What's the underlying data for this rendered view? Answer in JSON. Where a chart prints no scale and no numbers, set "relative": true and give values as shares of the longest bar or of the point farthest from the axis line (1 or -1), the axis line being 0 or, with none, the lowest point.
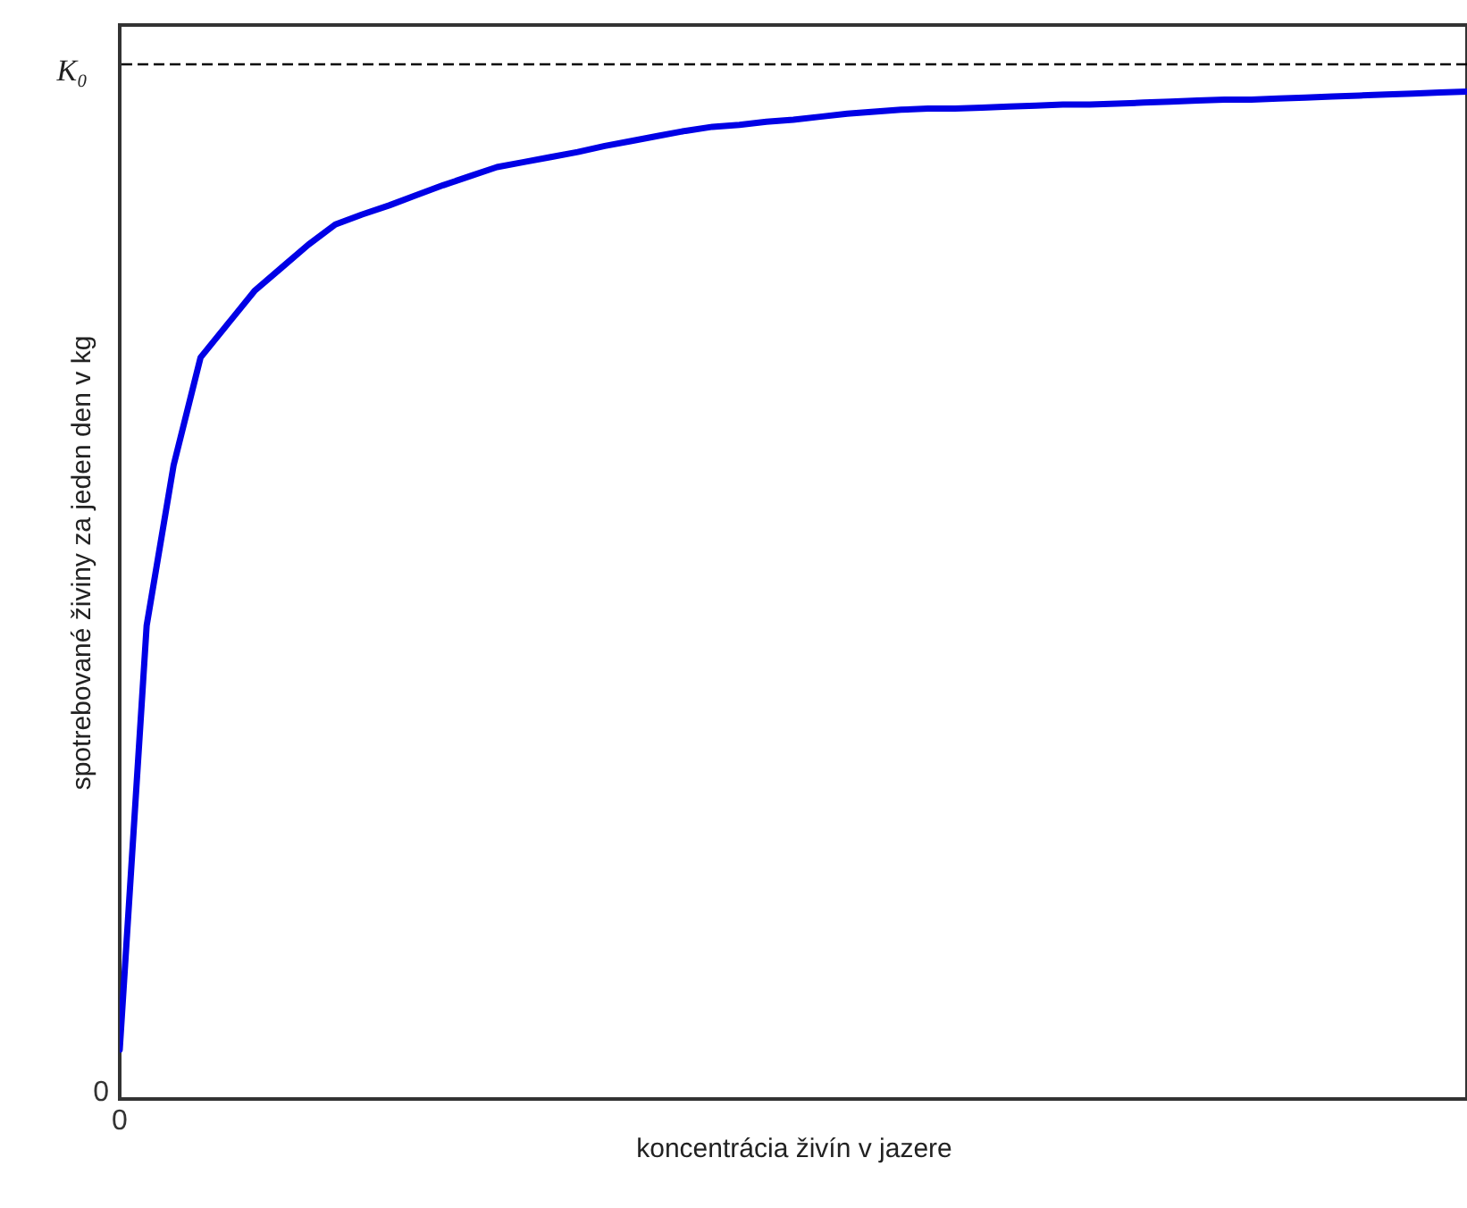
{
  "chart_data": {
    "type": "line",
    "xlabel": "koncentrácia živín v jazere",
    "ylabel": "spotrebované živiny za jeden den v kg",
    "categories": [
      null,
      null,
      null,
      null,
      null,
      null,
      null,
      null,
      null,
      null,
      null,
      null,
      null,
      null,
      null,
      null,
      null,
      null,
      null,
      null,
      null,
      null,
      null,
      null,
      null,
      null,
      null,
      null,
      null,
      null,
      null,
      null,
      null,
      null,
      null,
      null,
      null,
      null,
      null,
      null,
      null,
      null,
      null,
      null,
      null,
      null,
      null,
      null,
      null,
      null,
      null
    ],
    "relative": true,
    "annotations": [
      "0",
      "0"
    ],
    "grid": false,
    "marker": "none",
    "line_style": "solid",
    "ref_lines": [
      {
        "axis": "y",
        "value": 1.027,
        "label": "K₀",
        "color": "#000000",
        "line_style": "dashed"
      }
    ],
    "series": [
      {
        "color": "#0000e6",
        "values": [
          0.049,
          0.47,
          0.629,
          0.736,
          0.769,
          0.802,
          0.825,
          0.848,
          0.868,
          0.878,
          0.887,
          0.897,
          0.907,
          0.916,
          0.925,
          0.93,
          0.935,
          0.94,
          0.946,
          0.951,
          0.956,
          0.961,
          0.965,
          0.967,
          0.97,
          0.972,
          0.975,
          0.978,
          0.98,
          0.982,
          0.983,
          0.983,
          0.984,
          0.985,
          0.986,
          0.987,
          0.987,
          0.988,
          0.989,
          0.99,
          0.991,
          0.992,
          0.992,
          0.993,
          0.994,
          0.995,
          0.996,
          0.997,
          0.998,
          0.999,
          1
        ]
      }
    ]
  }
}
